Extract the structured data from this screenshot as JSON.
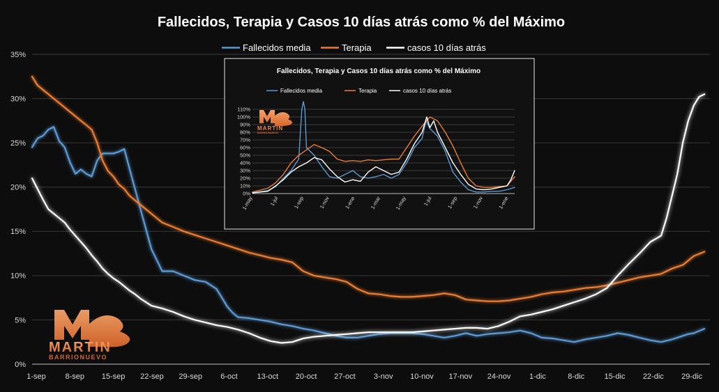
{
  "chart_data": [
    {
      "type": "line",
      "title": "Fallecidos, Terapia y Casos 10 días atrás como % del Máximo",
      "x_labels": [
        "1-sep",
        "8-sep",
        "15-sep",
        "22-sep",
        "29-sep",
        "6-oct",
        "13-oct",
        "20-oct",
        "27-oct",
        "3-nov",
        "10-nov",
        "17-nov",
        "24-nov",
        "1-dic",
        "8-dic",
        "15-dic",
        "22-dic",
        "29-dic"
      ],
      "y_ticks": [
        "0%",
        "5%",
        "10%",
        "15%",
        "20%",
        "25%",
        "30%",
        "35%"
      ],
      "ylim": [
        0,
        35
      ],
      "legend": [
        "Fallecidos media",
        "Terapia",
        "casos 10 días atrás"
      ],
      "series": [
        {
          "name": "Fallecidos media",
          "color": "#5b9bd5",
          "x": [
            0,
            1,
            2,
            3,
            4,
            5,
            6,
            7,
            8,
            9,
            10,
            11,
            12,
            13,
            14,
            15,
            16,
            17,
            18,
            20,
            22,
            24,
            26,
            28,
            30,
            32,
            34,
            35,
            36,
            37,
            38,
            40,
            42,
            44,
            46,
            48,
            50,
            52,
            54,
            56,
            58,
            60,
            62,
            64,
            66,
            68,
            70,
            72,
            74,
            76,
            78,
            80,
            82,
            84,
            86,
            88,
            90,
            92,
            94,
            96,
            98,
            100,
            102,
            104,
            106,
            108,
            110,
            112,
            114,
            116,
            118,
            120,
            121,
            122,
            124
          ],
          "y": [
            24.5,
            25.5,
            25.8,
            26.5,
            26.8,
            25.2,
            24.5,
            22.8,
            21.5,
            22,
            21.5,
            21.2,
            23,
            23.8,
            23.8,
            23.8,
            24,
            24.3,
            22,
            17.5,
            13,
            10.5,
            10.5,
            10,
            9.5,
            9.3,
            8.5,
            7.5,
            6.5,
            5.8,
            5.3,
            5.2,
            5,
            4.8,
            4.5,
            4.3,
            4,
            3.8,
            3.5,
            3.2,
            3,
            3,
            3.2,
            3.4,
            3.5,
            3.5,
            3.5,
            3.4,
            3.2,
            3,
            3.2,
            3.5,
            3.2,
            3.4,
            3.5,
            3.6,
            3.8,
            3.5,
            3,
            2.9,
            2.7,
            2.5,
            2.8,
            3,
            3.2,
            3.5,
            3.3,
            3,
            2.7,
            2.5,
            2.8,
            3.2,
            3.4,
            3.5,
            4
          ]
        },
        {
          "name": "Terapia",
          "color": "#ed7d31",
          "x": [
            0,
            1,
            2,
            3,
            4,
            5,
            6,
            7,
            8,
            9,
            10,
            11,
            12,
            13,
            14,
            15,
            16,
            17,
            18,
            19,
            20,
            21,
            22,
            23,
            24,
            26,
            28,
            30,
            32,
            34,
            36,
            38,
            40,
            42,
            44,
            46,
            48,
            50,
            52,
            54,
            56,
            58,
            60,
            62,
            64,
            66,
            68,
            70,
            72,
            74,
            76,
            78,
            80,
            82,
            84,
            86,
            88,
            90,
            92,
            94,
            96,
            98,
            100,
            102,
            104,
            106,
            108,
            110,
            112,
            114,
            116,
            118,
            120,
            122,
            124
          ],
          "y": [
            32.5,
            31.5,
            31,
            30.5,
            30,
            29.5,
            29,
            28.5,
            28,
            27.5,
            27,
            26.5,
            25,
            23,
            21.8,
            21.2,
            20.3,
            19.8,
            19,
            18.5,
            18,
            17.5,
            17,
            16.5,
            16,
            15.5,
            15,
            14.6,
            14.2,
            13.8,
            13.4,
            13,
            12.6,
            12.3,
            12,
            11.8,
            11.5,
            10.5,
            10,
            9.8,
            9.6,
            9.3,
            8.5,
            8,
            7.9,
            7.7,
            7.6,
            7.6,
            7.7,
            7.8,
            8,
            7.8,
            7.3,
            7.2,
            7.1,
            7.1,
            7.2,
            7.4,
            7.6,
            7.9,
            8.1,
            8.2,
            8.4,
            8.6,
            8.7,
            8.9,
            9.2,
            9.5,
            9.8,
            10,
            10.2,
            10.8,
            11.2,
            12.2,
            12.7
          ]
        },
        {
          "name": "casos 10 días atrás",
          "color": "#ffffff",
          "x": [
            0,
            1,
            2,
            3,
            4,
            5,
            6,
            7,
            8,
            9,
            10,
            11,
            12,
            13,
            14,
            15,
            16,
            17,
            18,
            19,
            20,
            22,
            24,
            26,
            28,
            30,
            32,
            34,
            36,
            38,
            40,
            42,
            44,
            46,
            48,
            50,
            52,
            54,
            56,
            58,
            60,
            62,
            64,
            66,
            68,
            70,
            72,
            74,
            76,
            78,
            80,
            82,
            84,
            86,
            88,
            90,
            92,
            94,
            96,
            98,
            100,
            102,
            104,
            106,
            108,
            110,
            112,
            114,
            116,
            117,
            118,
            119,
            120,
            121,
            122,
            123,
            124
          ],
          "y": [
            21,
            19.8,
            18.6,
            17.5,
            17,
            16.5,
            16,
            15.2,
            14.5,
            13.8,
            13.1,
            12.3,
            11.6,
            10.8,
            10.2,
            9.7,
            9.3,
            8.8,
            8.3,
            7.9,
            7.4,
            6.6,
            6.3,
            5.9,
            5.4,
            5,
            4.7,
            4.4,
            4.2,
            3.9,
            3.5,
            3,
            2.6,
            2.4,
            2.5,
            2.9,
            3.1,
            3.2,
            3.3,
            3.4,
            3.5,
            3.6,
            3.6,
            3.6,
            3.6,
            3.6,
            3.7,
            3.8,
            3.9,
            4,
            4.1,
            4.1,
            4,
            4.3,
            4.8,
            5.4,
            5.6,
            5.9,
            6.2,
            6.6,
            7,
            7.4,
            7.9,
            8.6,
            10,
            11.3,
            12.5,
            13.8,
            14.5,
            16.5,
            19,
            21.5,
            25,
            27.5,
            29.2,
            30.2,
            30.5
          ]
        }
      ]
    },
    {
      "type": "line",
      "title": "Fallecidos, Terapia y Casos 10 días atrás como % del Máximo",
      "x_labels": [
        "1-may",
        "1-jul",
        "1-sep",
        "1-nov",
        "1-ene",
        "1-mar",
        "1-may",
        "1-jul",
        "1-sep",
        "1-nov",
        "1-ene"
      ],
      "y_ticks": [
        "0%",
        "10%",
        "20%",
        "30%",
        "40%",
        "50%",
        "60%",
        "70%",
        "80%",
        "90%",
        "100%",
        "110%"
      ],
      "ylim": [
        0,
        110
      ],
      "legend": [
        "Fallecidos media",
        "Terapia",
        "casos 10 días atrás"
      ],
      "series": [
        {
          "name": "Fallecidos media",
          "color": "#5b9bd5",
          "x": [
            0,
            2,
            3,
            4,
            5,
            6,
            6.4,
            6.6,
            6.8,
            7.0,
            7.4,
            8,
            9,
            10,
            11,
            12,
            13,
            14,
            15,
            16,
            17,
            18,
            19,
            20,
            21,
            22,
            22.5,
            23,
            24,
            25,
            26,
            27,
            28,
            29,
            30,
            31,
            32,
            33,
            34
          ],
          "y": [
            1,
            4,
            9,
            20,
            30,
            45,
            110,
            120,
            110,
            60,
            56,
            50,
            35,
            22,
            20,
            25,
            30,
            22,
            20,
            22,
            25,
            20,
            25,
            40,
            60,
            72,
            95,
            85,
            75,
            55,
            28,
            15,
            5,
            2,
            2,
            3,
            3,
            5,
            8
          ]
        },
        {
          "name": "Terapia",
          "color": "#ed7d31",
          "x": [
            0,
            2,
            3,
            4,
            5,
            6,
            7,
            8,
            9,
            10,
            11,
            12,
            13,
            14,
            15,
            16,
            17,
            18,
            19,
            20,
            21,
            22,
            23,
            24,
            25,
            26,
            27,
            28,
            29,
            30,
            31,
            32,
            33,
            33.5,
            34
          ],
          "y": [
            2,
            7,
            14,
            25,
            40,
            50,
            57,
            64,
            60,
            55,
            45,
            42,
            43,
            42,
            44,
            43,
            44,
            45,
            45,
            60,
            75,
            88,
            100,
            95,
            80,
            62,
            40,
            20,
            10,
            8,
            8,
            9,
            10,
            16,
            22
          ]
        },
        {
          "name": "casos 10 días atrás",
          "color": "#ffffff",
          "x": [
            0,
            2,
            3,
            4,
            5,
            6,
            7,
            8,
            9,
            10,
            11,
            12,
            13,
            14,
            15,
            16,
            17,
            18,
            19,
            20,
            21,
            22,
            22.6,
            23,
            23.5,
            24,
            25,
            26,
            27,
            28,
            29,
            30,
            31,
            32,
            33,
            33.5,
            34
          ],
          "y": [
            1,
            3,
            10,
            18,
            28,
            35,
            40,
            47,
            44,
            32,
            22,
            15,
            18,
            16,
            28,
            35,
            30,
            25,
            28,
            45,
            65,
            80,
            100,
            86,
            95,
            80,
            60,
            40,
            25,
            12,
            6,
            5,
            6,
            8,
            10,
            18,
            30
          ]
        }
      ]
    }
  ]
}
